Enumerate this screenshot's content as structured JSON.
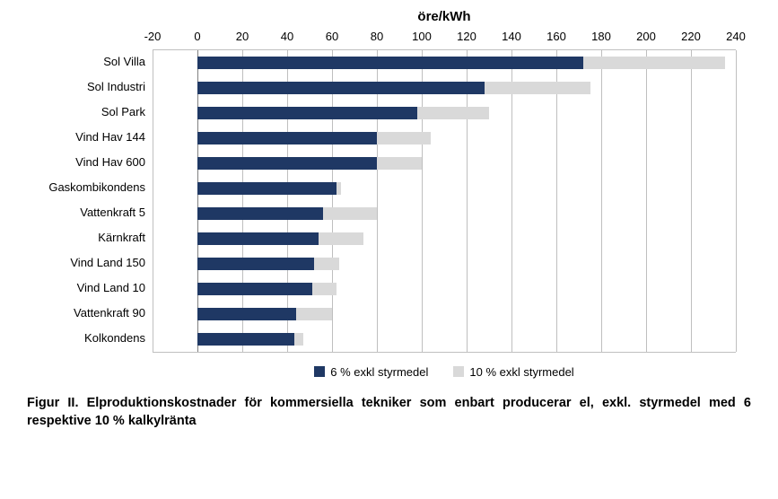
{
  "chart": {
    "type": "bar",
    "orientation": "horizontal",
    "axis_title": "öre/kWh",
    "xlim": [
      -20,
      240
    ],
    "xtick_step": 20,
    "xticks": [
      -20,
      0,
      20,
      40,
      60,
      80,
      100,
      120,
      140,
      160,
      180,
      200,
      220,
      240
    ],
    "grid_color": "#bfbfbf",
    "zero_line_color": "#808080",
    "background_color": "#ffffff",
    "bar_height_ratio": 0.5,
    "axis_title_fontsize": 15,
    "tick_fontsize": 13,
    "label_fontsize": 13,
    "categories": [
      "Sol Villa",
      "Sol Industri",
      "Sol Park",
      "Vind Hav 144",
      "Vind Hav 600",
      "Gaskombikondens",
      "Vattenkraft 5",
      "Kärnkraft",
      "Vind Land 150",
      "Vind Land 10",
      "Vattenkraft 90",
      "Kolkondens"
    ],
    "series": [
      {
        "name": "6 % exkl styrmedel",
        "color": "#1f3864",
        "values": [
          172,
          128,
          98,
          80,
          80,
          62,
          56,
          54,
          52,
          51,
          44,
          43
        ]
      },
      {
        "name": "10 % exkl styrmedel",
        "color": "#d9d9d9",
        "values": [
          235,
          175,
          130,
          104,
          100,
          64,
          80,
          74,
          63,
          62,
          60,
          47
        ]
      }
    ],
    "legend": {
      "position": "bottom",
      "fontsize": 13
    }
  },
  "caption": "Figur II. Elproduktionskostnader för kommersiella tekniker som enbart producerar el, exkl. styrmedel med 6 respektive 10 % kalkylränta"
}
